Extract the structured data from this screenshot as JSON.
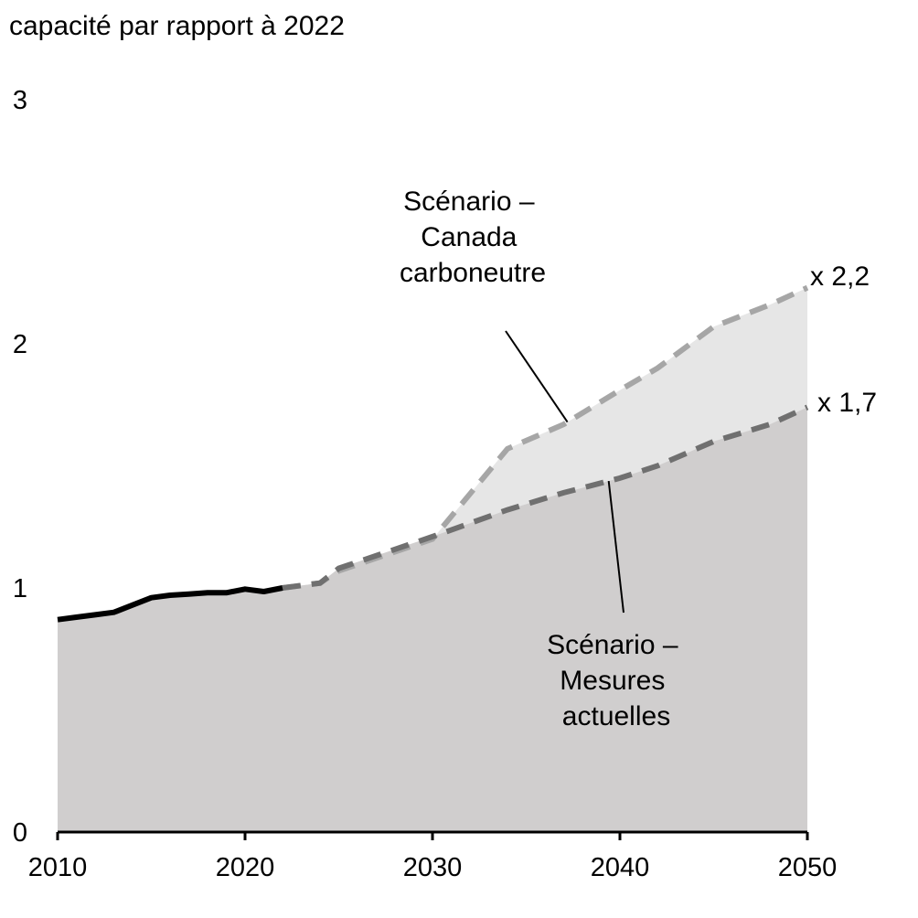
{
  "chart_data": {
    "type": "area",
    "title": "capacité par rapport à 2022",
    "xlim": [
      2010,
      2050
    ],
    "ylim": [
      0,
      3
    ],
    "x_ticks": [
      "2010",
      "2020",
      "2030",
      "2040",
      "2050"
    ],
    "y_ticks": [
      "0",
      "1",
      "2",
      "3"
    ],
    "grid": false,
    "historical": {
      "x": [
        2010,
        2011,
        2012,
        2013,
        2014,
        2015,
        2016,
        2017,
        2018,
        2019,
        2020,
        2021,
        2022
      ],
      "y": [
        0.87,
        0.88,
        0.89,
        0.9,
        0.93,
        0.96,
        0.97,
        0.975,
        0.98,
        0.98,
        0.995,
        0.985,
        1.0
      ]
    },
    "series": [
      {
        "name": "Scénario – Canada carboneutre",
        "end_label": "x 2,2",
        "color": "#a6a6a6",
        "fill": "#e6e6e6",
        "x": [
          2022,
          2024,
          2025,
          2030,
          2034,
          2037,
          2040,
          2042,
          2045,
          2048,
          2050
        ],
        "y": [
          1.0,
          1.02,
          1.07,
          1.2,
          1.57,
          1.67,
          1.81,
          1.9,
          2.07,
          2.16,
          2.23
        ]
      },
      {
        "name": "Scénario – Mesures actuelles",
        "end_label": "x 1,7",
        "color": "#707070",
        "fill": "#d0cece",
        "x": [
          2022,
          2024,
          2025,
          2030,
          2034,
          2037,
          2040,
          2042,
          2045,
          2048,
          2050
        ],
        "y": [
          1.0,
          1.02,
          1.08,
          1.21,
          1.32,
          1.39,
          1.45,
          1.5,
          1.6,
          1.67,
          1.74
        ]
      }
    ],
    "annotations": [
      {
        "lines": [
          "Scénario –",
          "Canada",
          "carboneutre"
        ],
        "series": 0
      },
      {
        "lines": [
          "Scénario –",
          "Mesures",
          "actuelles"
        ],
        "series": 1
      }
    ]
  }
}
